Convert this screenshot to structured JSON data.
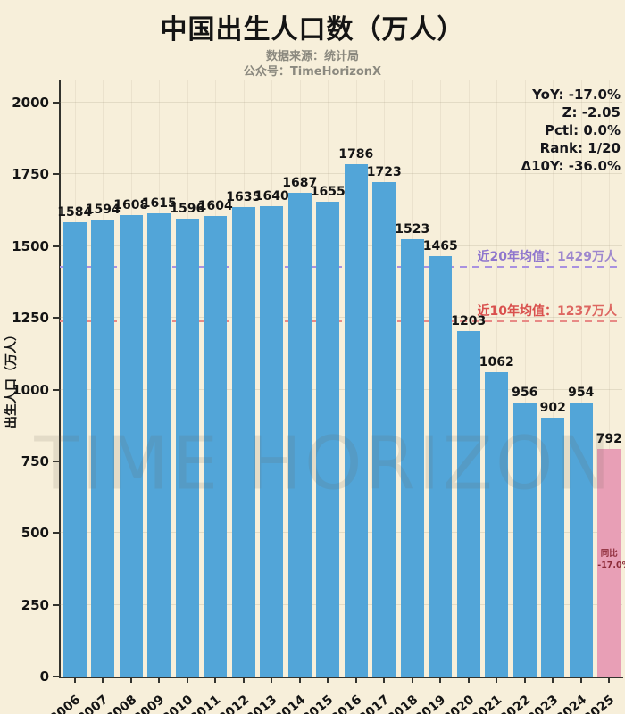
{
  "header": {
    "title": "中国出生人口数（万人）",
    "subtitle_line1": "数据来源：统计局",
    "subtitle_line2": "公众号：TimeHorizonX"
  },
  "stats_box": {
    "lines": [
      "YoY: -17.0%",
      "Z: -2.05",
      "Pctl: 0.0%",
      "Rank: 1/20",
      "Δ10Y: -36.0%"
    ]
  },
  "watermark": "TIME HORIZON",
  "y_axis": {
    "label": "出生人口（万人）",
    "ticks": [
      0,
      250,
      500,
      750,
      1000,
      1250,
      1500,
      1750,
      2000
    ]
  },
  "chart_data": {
    "type": "bar",
    "title": "中国出生人口数（万人）",
    "xlabel": "",
    "ylabel": "出生人口（万人）",
    "ylim": [
      0,
      2000
    ],
    "grid": true,
    "categories": [
      "2006",
      "2007",
      "2008",
      "2009",
      "2010",
      "2011",
      "2012",
      "2013",
      "2014",
      "2015",
      "2016",
      "2017",
      "2018",
      "2019",
      "2020",
      "2021",
      "2022",
      "2023",
      "2024",
      "2025"
    ],
    "values": [
      1584,
      1594,
      1608,
      1615,
      1596,
      1604,
      1635,
      1640,
      1687,
      1655,
      1786,
      1723,
      1523,
      1465,
      1203,
      1062,
      956,
      902,
      954,
      792
    ],
    "highlight_index": 19,
    "reference_lines": [
      {
        "label_prefix": "近20年均值：",
        "label_value": "1429万人",
        "value": 1429,
        "label_color": "#8f76cd",
        "line_color": "#a991e0"
      },
      {
        "label_prefix": "近10年均值：",
        "label_value": "1237万人",
        "value": 1237,
        "label_color": "#d9504d",
        "line_color": "#e88a86"
      }
    ],
    "highlight_annotation": {
      "line1": "同比",
      "line2": "-17.0%"
    }
  },
  "colors": {
    "background": "#f7efda",
    "bar_blue": "#52a5d8",
    "bar_pink": "#e89fb6",
    "annotation_maroon": "#8c2b38",
    "title_black": "#141414",
    "subtitle_gray": "#8b897f",
    "mean20_purple": "#8f76cd",
    "mean10_red": "#d9504d"
  }
}
